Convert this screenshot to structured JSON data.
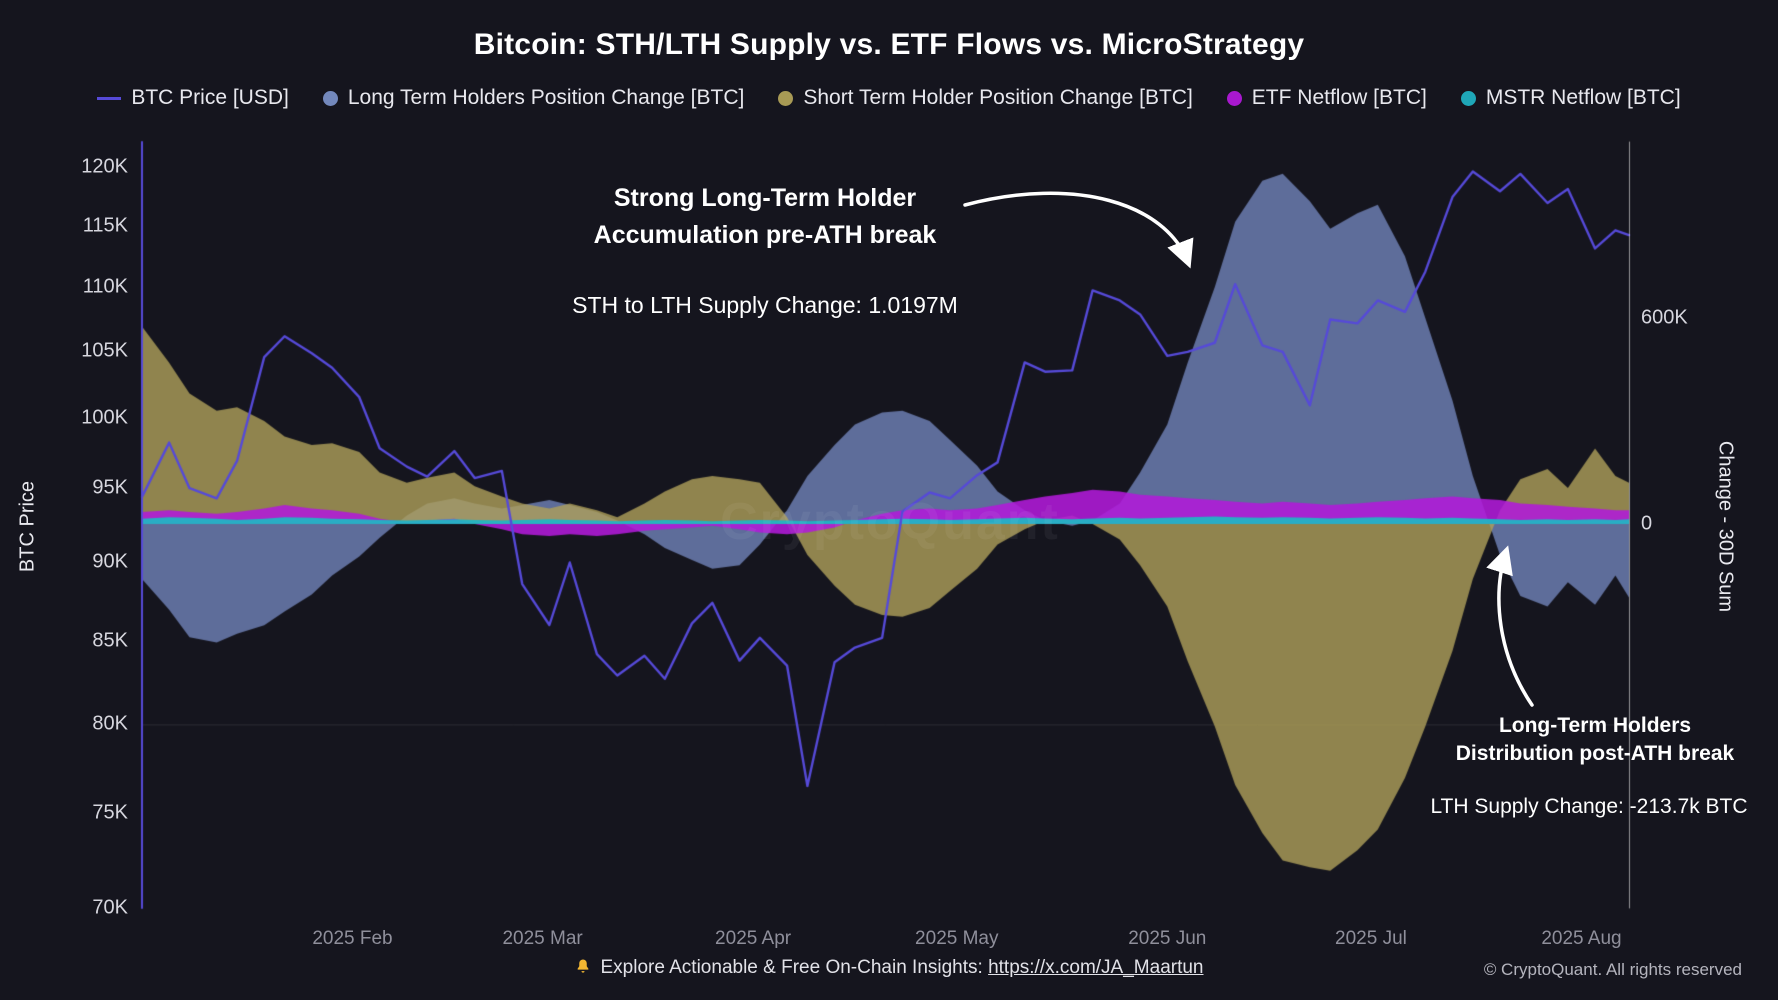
{
  "title": "Bitcoin: STH/LTH Supply vs. ETF Flows vs. MicroStrategy",
  "legend": [
    {
      "label": "BTC Price [USD]",
      "color": "#564ad8",
      "marker": "line"
    },
    {
      "label": "Long Term Holders Position Change [BTC]",
      "color": "#7388bc",
      "marker": "dot"
    },
    {
      "label": "Short Term Holder Position Change [BTC]",
      "color": "#a89a55",
      "marker": "dot"
    },
    {
      "label": "ETF Netflow [BTC]",
      "color": "#a818cf",
      "marker": "dot"
    },
    {
      "label": "MSTR Netflow [BTC]",
      "color": "#1fa7b8",
      "marker": "dot"
    }
  ],
  "annotations": {
    "accumulation_line1": "Strong Long-Term Holder",
    "accumulation_line2": "Accumulation pre-ATH break",
    "sth_lth_change": "STH to LTH Supply Change: 1.0197M",
    "distribution_line1": "Long-Term Holders",
    "distribution_line2": "Distribution post-ATH break",
    "lth_supply_change": "LTH Supply Change: -213.7k BTC"
  },
  "watermark": "CryptoQuant",
  "footer": {
    "insights_prefix": "Explore Actionable & Free On-Chain Insights: ",
    "link_text": "https://x.com/JA_Maartun",
    "copyright": "© CryptoQuant. All rights reserved"
  },
  "chart_data": {
    "type": "mixed",
    "title": "Bitcoin: STH/LTH Supply vs. ETF Flows vs. MicroStrategy",
    "x_unit": "days since 2025-01-01",
    "x": [
      0,
      4,
      7,
      11,
      14,
      18,
      21,
      25,
      28,
      32,
      35,
      39,
      42,
      46,
      49,
      53,
      56,
      60,
      63,
      67,
      70,
      74,
      77,
      81,
      84,
      88,
      91,
      95,
      98,
      102,
      105,
      109,
      112,
      116,
      119,
      123,
      126,
      130,
      133,
      137,
      140,
      144,
      147,
      151,
      154,
      158,
      161,
      165,
      168,
      172,
      175,
      179,
      182,
      186,
      189,
      193,
      196,
      200,
      203,
      207,
      210,
      214,
      217,
      219
    ],
    "series": [
      {
        "name": "BTC Price [USD]",
        "type": "line",
        "axis": "price",
        "unit": "K USD",
        "color": "#564ad8",
        "values": [
          94.4,
          98.2,
          95.0,
          94.3,
          96.9,
          104.5,
          106.1,
          104.8,
          103.7,
          101.5,
          97.8,
          96.5,
          95.8,
          97.6,
          95.7,
          96.2,
          88.6,
          86.0,
          90.0,
          84.2,
          82.9,
          84.1,
          82.7,
          86.1,
          87.4,
          83.8,
          85.2,
          83.5,
          76.5,
          83.7,
          84.6,
          85.2,
          93.4,
          94.7,
          94.3,
          95.9,
          96.8,
          104.1,
          103.4,
          103.5,
          109.7,
          108.9,
          107.8,
          104.6,
          104.9,
          105.6,
          110.2,
          105.4,
          104.9,
          100.9,
          107.4,
          107.1,
          108.9,
          108.0,
          111.2,
          117.4,
          119.6,
          117.9,
          119.4,
          116.9,
          118.1,
          113.1,
          114.6,
          114.2
        ]
      },
      {
        "name": "Long Term Holders Position Change [BTC]",
        "type": "area",
        "axis": "flow",
        "unit": "K BTC",
        "color": "rgba(115,135,190,0.78)",
        "values": [
          -160,
          -250,
          -330,
          -345,
          -320,
          -295,
          -255,
          -205,
          -150,
          -95,
          -40,
          25,
          60,
          75,
          60,
          45,
          55,
          70,
          55,
          35,
          10,
          -30,
          -70,
          -105,
          -130,
          -120,
          -60,
          40,
          140,
          230,
          290,
          325,
          330,
          300,
          245,
          170,
          95,
          40,
          10,
          -5,
          10,
          60,
          150,
          290,
          470,
          690,
          880,
          1000,
          1020,
          940,
          860,
          905,
          930,
          780,
          600,
          360,
          140,
          -90,
          -210,
          -240,
          -170,
          -235,
          -150,
          -214
        ]
      },
      {
        "name": "Short Term Holder Position Change [BTC]",
        "type": "area",
        "axis": "flow",
        "unit": "K BTC",
        "color": "rgba(175,160,90,0.8)",
        "values": [
          575,
          470,
          380,
          330,
          340,
          300,
          255,
          230,
          235,
          210,
          150,
          120,
          135,
          150,
          110,
          80,
          60,
          45,
          60,
          40,
          20,
          60,
          95,
          130,
          140,
          130,
          120,
          20,
          -90,
          -180,
          -235,
          -265,
          -270,
          -245,
          -195,
          -130,
          -60,
          -15,
          10,
          25,
          0,
          -45,
          -120,
          -240,
          -400,
          -590,
          -760,
          -900,
          -980,
          -1000,
          -1010,
          -950,
          -890,
          -740,
          -590,
          -370,
          -160,
          40,
          130,
          160,
          105,
          220,
          140,
          120
        ]
      },
      {
        "name": "ETF Netflow [BTC]",
        "type": "area",
        "axis": "flow",
        "unit": "K BTC",
        "color": "rgba(178,26,218,0.88)",
        "values": [
          35,
          40,
          35,
          30,
          35,
          45,
          55,
          45,
          40,
          30,
          15,
          5,
          10,
          15,
          0,
          -15,
          -30,
          -35,
          -30,
          -35,
          -30,
          -20,
          -15,
          -10,
          -5,
          -15,
          -25,
          -30,
          -25,
          -10,
          10,
          30,
          40,
          45,
          40,
          45,
          55,
          70,
          80,
          90,
          100,
          95,
          85,
          80,
          75,
          70,
          65,
          60,
          65,
          60,
          55,
          60,
          65,
          70,
          75,
          80,
          75,
          70,
          60,
          55,
          50,
          45,
          40,
          40
        ]
      },
      {
        "name": "MSTR Netflow [BTC]",
        "type": "area",
        "axis": "flow",
        "unit": "K BTC",
        "color": "rgba(34,180,196,0.95)",
        "values": [
          15,
          20,
          18,
          15,
          12,
          15,
          20,
          18,
          15,
          14,
          12,
          10,
          12,
          14,
          12,
          10,
          12,
          14,
          12,
          10,
          8,
          10,
          12,
          10,
          8,
          10,
          12,
          10,
          8,
          10,
          12,
          14,
          15,
          14,
          12,
          14,
          16,
          18,
          16,
          14,
          16,
          18,
          16,
          18,
          20,
          22,
          20,
          18,
          20,
          18,
          16,
          18,
          20,
          18,
          16,
          18,
          16,
          14,
          12,
          14,
          12,
          14,
          12,
          14
        ]
      }
    ],
    "price_axis": {
      "title": "BTC Price",
      "scale": "log",
      "min": 70,
      "max": 120,
      "ticks": [
        {
          "value": 120,
          "label": "120K"
        },
        {
          "value": 115,
          "label": "115K"
        },
        {
          "value": 110,
          "label": "110K"
        },
        {
          "value": 105,
          "label": "105K"
        },
        {
          "value": 100,
          "label": "100K"
        },
        {
          "value": 95,
          "label": "95K"
        },
        {
          "value": 90,
          "label": "90K"
        },
        {
          "value": 85,
          "label": "85K"
        },
        {
          "value": 80,
          "label": "80K"
        },
        {
          "value": 75,
          "label": "75K"
        },
        {
          "value": 70,
          "label": "70K"
        }
      ],
      "gridline_value": 80
    },
    "flow_axis": {
      "title": "Change - 30D Sum",
      "scale": "linear",
      "ticks": [
        {
          "value": 600,
          "label": "600K"
        },
        {
          "value": 0,
          "label": "0"
        }
      ]
    },
    "x_ticks": [
      {
        "day": 31,
        "label": "2025 Feb"
      },
      {
        "day": 59,
        "label": "2025 Mar"
      },
      {
        "day": 90,
        "label": "2025 Apr"
      },
      {
        "day": 120,
        "label": "2025 May"
      },
      {
        "day": 151,
        "label": "2025 Jun"
      },
      {
        "day": 181,
        "label": "2025 Jul"
      },
      {
        "day": 212,
        "label": "2025 Aug"
      }
    ],
    "legend_position": "top",
    "grid": "off"
  }
}
